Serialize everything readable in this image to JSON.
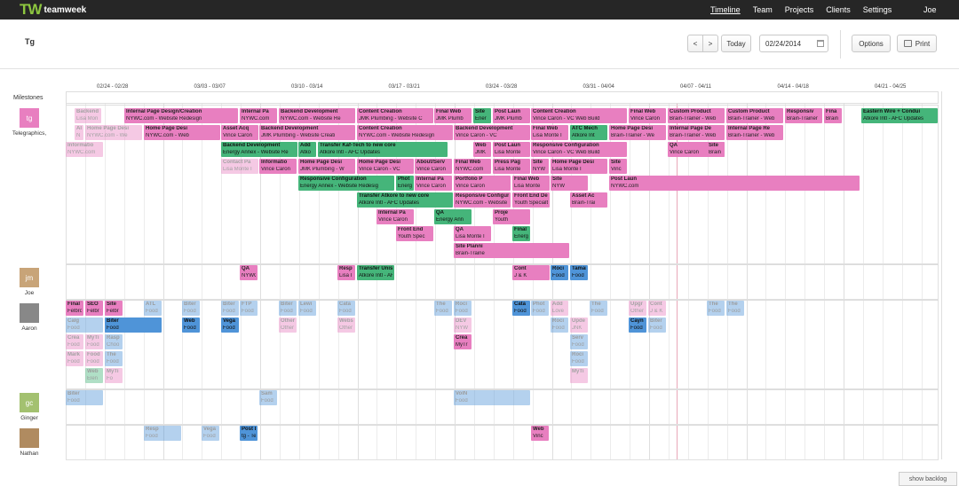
{
  "nav": {
    "logo_mark": "TW",
    "logo_text": "teamweek",
    "items": [
      "Timeline",
      "Team",
      "Projects",
      "Clients",
      "Settings"
    ],
    "user": "Joe"
  },
  "toolbar": {
    "title": "Tg",
    "prev": "<",
    "next": ">",
    "today": "Today",
    "date": "02/24/2014",
    "options": "Options",
    "print": "Print"
  },
  "weeks": [
    "02/24 - 02/28",
    "03/03 - 03/07",
    "03/10 - 03/14",
    "03/17 - 03/21",
    "03/24 - 03/28",
    "03/31 - 04/04",
    "04/07 - 04/11",
    "04/14 - 04/18",
    "04/21 - 04/25"
  ],
  "milestones_label": "Milestones",
  "members": [
    {
      "initials": "tg",
      "name": "Telegraphics,",
      "color": "#e87fc0"
    },
    {
      "initials": "jm",
      "name": "Joe",
      "color": "#c8a478"
    },
    {
      "initials": "",
      "name": "Aaron",
      "color": "#888888"
    },
    {
      "initials": "gc",
      "name": "Ginger",
      "color": "#a3c170"
    },
    {
      "initials": "",
      "name": "Nathan",
      "color": "#b08b60"
    }
  ],
  "colors": {
    "pink": "#e87fc0",
    "green": "#45b57a",
    "blue": "#4f94d8",
    "nav_bg": "#262626",
    "brand": "#8dc63f"
  },
  "tasks": [
    {
      "t1": "Backend",
      "t2": "Lisa Mon",
      "c": "pink",
      "f": true
    },
    {
      "t1": "Internal Page Design/Creation",
      "t2": "NYWC.com - Website Redesign",
      "c": "pink",
      "f": false
    },
    {
      "t1": "Internal Pa",
      "t2": "NYWC.com",
      "c": "pink",
      "f": false
    },
    {
      "t1": "Backend Development",
      "t2": "NYWC.com - Website Re",
      "c": "pink",
      "f": false
    },
    {
      "t1": "Content Creation",
      "t2": "JMK Plumbing - Website C",
      "c": "pink",
      "f": false
    },
    {
      "t1": "Final Web",
      "t2": "JMK Plumb",
      "c": "pink",
      "f": false
    },
    {
      "t1": "Site",
      "t2": "Ener",
      "c": "green",
      "f": false
    },
    {
      "t1": "Post Laun",
      "t2": "JMK Plumb",
      "c": "pink",
      "f": false
    },
    {
      "t1": "Content Creation",
      "t2": "Vince Caron - VC Web Build",
      "c": "pink",
      "f": false
    },
    {
      "t1": "Final Web",
      "t2": "Vince Caron",
      "c": "pink",
      "f": false
    },
    {
      "t1": "Custom Product",
      "t2": "Brain-Trainer - Web",
      "c": "pink",
      "f": false
    },
    {
      "t1": "Custom Product",
      "t2": "Brain-Trainer - Web",
      "c": "pink",
      "f": false
    },
    {
      "t1": "Responsiv",
      "t2": "Brain-Trainer",
      "c": "pink",
      "f": false
    },
    {
      "t1": "Fina",
      "t2": "Brain",
      "c": "pink",
      "f": false
    },
    {
      "t1": "Eastern Wire + Condui",
      "t2": "Atkore Intl - AFC Updates",
      "c": "green",
      "f": false
    },
    {
      "t1": "Al",
      "t2": "N",
      "c": "pink",
      "f": true
    },
    {
      "t1": "Home Page Desi",
      "t2": "NYWC.com - We",
      "c": "pink",
      "f": true
    },
    {
      "t1": "Home Page Desi",
      "t2": "NYWC.com - Web",
      "c": "pink",
      "f": false
    },
    {
      "t1": "Asset Acq",
      "t2": "Vince Caron",
      "c": "pink",
      "f": false
    },
    {
      "t1": "Backend Development",
      "t2": "JMK Plumbing - Website Creati",
      "c": "pink",
      "f": false
    },
    {
      "t1": "Content Creation",
      "t2": "NYWC.com - Website Redesign",
      "c": "pink",
      "f": false
    },
    {
      "t1": "Backend Development",
      "t2": "Vince Caron - VC",
      "c": "pink",
      "f": false
    },
    {
      "t1": "Final Web",
      "t2": "Lisa Monte I",
      "c": "pink",
      "f": false
    },
    {
      "t1": "ATC Mech",
      "t2": "Atkore Int",
      "c": "green",
      "f": false
    },
    {
      "t1": "Home Page Desi",
      "t2": "Brain-Trainer - We",
      "c": "pink",
      "f": false
    },
    {
      "t1": "Internal Page De",
      "t2": "Brain-Trainer - Web",
      "c": "pink",
      "f": false
    },
    {
      "t1": "Internal Page Re",
      "t2": "Brain-Trainer - Web",
      "c": "pink",
      "f": false
    },
    {
      "t1": "Informatio",
      "t2": "NYWC.com",
      "c": "pink",
      "f": true
    },
    {
      "t1": "Backend Development",
      "t2": "Energy Annex - Website Re",
      "c": "green",
      "f": false
    },
    {
      "t1": "Add",
      "t2": "Atko",
      "c": "green",
      "f": false
    },
    {
      "t1": "Transfer Kaf-Tech to new core",
      "t2": "Atkore Intl - AFC Updates",
      "c": "green",
      "f": false
    },
    {
      "t1": "Web",
      "t2": "JMK",
      "c": "pink",
      "f": false
    },
    {
      "t1": "Post Laun",
      "t2": "Lisa Monte",
      "c": "pink",
      "f": false
    },
    {
      "t1": "Responsive Configuration",
      "t2": "Vince Caron - VC Web Build",
      "c": "pink",
      "f": false
    },
    {
      "t1": "QA",
      "t2": "Vince Caron",
      "c": "pink",
      "f": false
    },
    {
      "t1": "Site",
      "t2": "Brain",
      "c": "pink",
      "f": false
    },
    {
      "t1": "Contact Pa",
      "t2": "Lisa Monte I",
      "c": "pink",
      "f": true
    },
    {
      "t1": "Informatio",
      "t2": "Vince Caron",
      "c": "pink",
      "f": false
    },
    {
      "t1": "Home Page Desi",
      "t2": "JMK Plumbing - W",
      "c": "pink",
      "f": false
    },
    {
      "t1": "Home Page Desi",
      "t2": "Vince Caron - VC",
      "c": "pink",
      "f": false
    },
    {
      "t1": "About/Serv",
      "t2": "Vince Caron",
      "c": "pink",
      "f": false
    },
    {
      "t1": "Final Web",
      "t2": "NYWC.com",
      "c": "pink",
      "f": false
    },
    {
      "t1": "Press Pag",
      "t2": "Lisa Monte",
      "c": "pink",
      "f": false
    },
    {
      "t1": "Site",
      "t2": "NYW",
      "c": "pink",
      "f": false
    },
    {
      "t1": "Home Page Desi",
      "t2": "Lisa Monte I",
      "c": "pink",
      "f": false
    },
    {
      "t1": "Site",
      "t2": "Vinc",
      "c": "pink",
      "f": false
    },
    {
      "t1": "Responsive Configuration",
      "t2": "Energy Annex - Website Redesig",
      "c": "green",
      "f": false
    },
    {
      "t1": "Phot",
      "t2": "Energ",
      "c": "green",
      "f": false
    },
    {
      "t1": "Internal Pa",
      "t2": "Vince Caron",
      "c": "pink",
      "f": false
    },
    {
      "t1": "Portfolio P",
      "t2": "Vince Caron",
      "c": "pink",
      "f": false
    },
    {
      "t1": "Final Web",
      "t2": "Lisa Monte",
      "c": "pink",
      "f": false
    },
    {
      "t1": "Site",
      "t2": "NYW",
      "c": "pink",
      "f": false
    },
    {
      "t1": "Post Laun",
      "t2": "NYWC.com",
      "c": "pink",
      "f": false
    },
    {
      "t1": "Transfer Atkore to new core",
      "t2": "Atkore Intl - AFC Updates",
      "c": "green",
      "f": false
    },
    {
      "t1": "Responsive Configuration",
      "t2": "NYWC.com - Website Redesign",
      "c": "pink",
      "f": false
    },
    {
      "t1": "Front End Desig",
      "t2": "Youth Specialties -",
      "c": "pink",
      "f": false
    },
    {
      "t1": "Asset Ac",
      "t2": "Brain-Trai",
      "c": "pink",
      "f": false
    },
    {
      "t1": "Internal Pa",
      "t2": "Vince Caron",
      "c": "pink",
      "f": false
    },
    {
      "t1": "QA",
      "t2": "Energy Ann",
      "c": "green",
      "f": false
    },
    {
      "t1": "Proje",
      "t2": "Youth",
      "c": "pink",
      "f": false
    },
    {
      "t1": "Front End",
      "t2": "Youth Spec",
      "c": "pink",
      "f": false
    },
    {
      "t1": "QA",
      "t2": "Lisa Monte I",
      "c": "pink",
      "f": false
    },
    {
      "t1": "Final Web",
      "t2": "Energy Ann",
      "c": "green",
      "f": false
    },
    {
      "t1": "Site Planni",
      "t2": "Brain-Traine",
      "c": "pink",
      "f": false
    },
    {
      "t1": "QA",
      "t2": "NYWC.com",
      "c": "pink",
      "f": false
    },
    {
      "t1": "Resp",
      "t2": "Lisa I",
      "c": "pink",
      "f": false
    },
    {
      "t1": "Transfer Unistrut Fall Protection to",
      "t2": "Atkore Intl - AFC Updates",
      "c": "green",
      "f": false
    },
    {
      "t1": "Cont",
      "t2": "J & K",
      "c": "pink",
      "f": false
    },
    {
      "t1": "Roci",
      "t2": "Food",
      "c": "blue",
      "f": false
    },
    {
      "t1": "Tamara So",
      "t2": "Food Tour P",
      "c": "blue",
      "f": false
    },
    {
      "t1": "Final Web",
      "t2": "Felbro Displa",
      "c": "pink",
      "f": false
    },
    {
      "t1": "SEO",
      "t2": "Felbr",
      "c": "pink",
      "f": false
    },
    {
      "t1": "Site",
      "t2": "Felbr",
      "c": "pink",
      "f": false
    },
    {
      "t1": "ATL",
      "t2": "Food",
      "c": "blue",
      "f": true
    },
    {
      "t1": "Biter",
      "t2": "Food",
      "c": "blue",
      "f": true
    },
    {
      "t1": "Biter",
      "t2": "Food",
      "c": "blue",
      "f": true
    },
    {
      "t1": "FTP",
      "t2": "Food",
      "c": "blue",
      "f": true
    },
    {
      "t1": "Biter",
      "t2": "Food",
      "c": "blue",
      "f": true
    },
    {
      "t1": "Lewi",
      "t2": "Food",
      "c": "blue",
      "f": true
    },
    {
      "t1": "Cata",
      "t2": "Food",
      "c": "blue",
      "f": true
    },
    {
      "t1": "The",
      "t2": "Food",
      "c": "blue",
      "f": true
    },
    {
      "t1": "Roci",
      "t2": "Food",
      "c": "blue",
      "f": true
    },
    {
      "t1": "Cata",
      "t2": "Food",
      "c": "blue",
      "f": false
    },
    {
      "t1": "Phot",
      "t2": "Food",
      "c": "blue",
      "f": true
    },
    {
      "t1": "Add",
      "t2": "Love",
      "c": "pink",
      "f": true
    },
    {
      "t1": "The",
      "t2": "Food",
      "c": "blue",
      "f": true
    },
    {
      "t1": "Upgr",
      "t2": "Other",
      "c": "pink",
      "f": true
    },
    {
      "t1": "Cont",
      "t2": "J & K",
      "c": "pink",
      "f": true
    },
    {
      "t1": "The",
      "t2": "Food",
      "c": "blue",
      "f": true
    },
    {
      "t1": "The",
      "t2": "Food",
      "c": "blue",
      "f": true
    },
    {
      "t1": "Calg",
      "t2": "Food",
      "c": "blue",
      "f": true
    },
    {
      "t1": "Biter",
      "t2": "Food",
      "c": "blue",
      "f": false
    },
    {
      "t1": "Web",
      "t2": "Food",
      "c": "blue",
      "f": false
    },
    {
      "t1": "Vega",
      "t2": "Food",
      "c": "blue",
      "f": false
    },
    {
      "t1": "Other Depot",
      "t2": "Other Depot",
      "c": "pink",
      "f": true
    },
    {
      "t1": "Website Upgrade",
      "t2": "Other Depot - Webs",
      "c": "pink",
      "f": true
    },
    {
      "t1": "DEV",
      "t2": "NYW",
      "c": "pink",
      "f": true
    },
    {
      "t1": "Roci",
      "t2": "Food",
      "c": "blue",
      "f": true
    },
    {
      "t1": "Upde",
      "t2": "JNK",
      "c": "pink",
      "f": true
    },
    {
      "t1": "Cayn",
      "t2": "Food",
      "c": "blue",
      "f": false
    },
    {
      "t1": "Biter",
      "t2": "Food",
      "c": "blue",
      "f": true
    },
    {
      "t1": "Crea",
      "t2": "Food",
      "c": "pink",
      "f": true
    },
    {
      "t1": "MyTi",
      "t2": "Food",
      "c": "pink",
      "f": true
    },
    {
      "t1": "Rasp",
      "t2": "Choo",
      "c": "blue",
      "f": true
    },
    {
      "t1": "Crea",
      "t2": "MyTr",
      "c": "pink",
      "f": false
    },
    {
      "t1": "Serv",
      "t2": "Food",
      "c": "blue",
      "f": true
    },
    {
      "t1": "Mark",
      "t2": "Food",
      "c": "pink",
      "f": true
    },
    {
      "t1": "Food",
      "t2": "Food",
      "c": "pink",
      "f": true
    },
    {
      "t1": "The",
      "t2": "Food",
      "c": "blue",
      "f": true
    },
    {
      "t1": "Roci",
      "t2": "Food",
      "c": "blue",
      "f": true
    },
    {
      "t1": "Web",
      "t2": "Elen",
      "c": "green",
      "f": true
    },
    {
      "t1": "MyTi",
      "t2": "Fo",
      "c": "pink",
      "f": true
    },
    {
      "t1": "MyTi",
      "t2": "",
      "c": "pink",
      "f": true
    },
    {
      "t1": "Biter",
      "t2": "Food",
      "c": "blue",
      "f": true
    },
    {
      "t1": "Sam",
      "t2": "Food",
      "c": "blue",
      "f": true
    },
    {
      "t1": "VolN",
      "t2": "Food",
      "c": "blue",
      "f": true
    },
    {
      "t1": "Resp",
      "t2": "Food",
      "c": "blue",
      "f": true
    },
    {
      "t1": "Vega",
      "t2": "Food",
      "c": "blue",
      "f": true
    },
    {
      "t1": "Post Laun",
      "t2": "tg - Test Pro",
      "c": "blue",
      "f": false
    },
    {
      "t1": "Web",
      "t2": "Vinc",
      "c": "pink",
      "f": false
    },
    {
      "t1": "Content Creation",
      "t2": "Felbro Displays - Felbro W",
      "c": "pink",
      "f": false
    },
    {
      "t1": "Go over Si",
      "t2": "Youth Speci",
      "c": "pink",
      "f": true
    },
    {
      "t1": "Phor",
      "t2": "Youl",
      "c": "pink",
      "f": true
    },
    {
      "t1": "CFP",
      "t2": "",
      "c": "blue",
      "f": false
    },
    {
      "t1": "Clos",
      "t2": "Other",
      "c": "pink",
      "f": false
    }
  ],
  "backlog": "show backlog"
}
